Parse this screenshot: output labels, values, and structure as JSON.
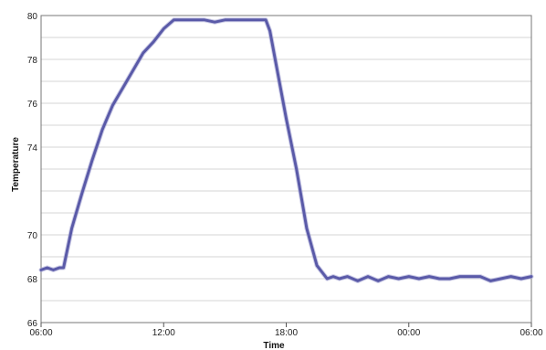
{
  "chart_data": {
    "type": "line",
    "title": "",
    "xlabel": "Time",
    "ylabel": "Temperature",
    "ylim": [
      66,
      80
    ],
    "y_ticks": [
      66,
      68,
      70,
      74,
      76,
      78,
      80
    ],
    "y_gridlines": [
      66,
      67,
      68,
      69,
      70,
      71,
      72,
      73,
      74,
      75,
      76,
      77,
      78,
      79,
      80
    ],
    "x_ticks": [
      "06:00",
      "12:00",
      "18:00",
      "00:00",
      "06:00"
    ],
    "x_unit": "hours since first 06:00 tick",
    "xlim": [
      0,
      24
    ],
    "grid": true,
    "line_color": "#5a5aa8",
    "series": [
      {
        "x": [
          0,
          0.3,
          0.6,
          0.9,
          1.1,
          1.5,
          2.0,
          2.5,
          3.0,
          3.5,
          4.0,
          4.5,
          5.0,
          5.5,
          6.0,
          6.5,
          7.0,
          7.5,
          8.0,
          8.5,
          9.0,
          9.5,
          10.0,
          10.5,
          11.0,
          11.2,
          11.5,
          12.0,
          12.5,
          13.0,
          13.5,
          14.0,
          14.3,
          14.6,
          15.0,
          15.5,
          16.0,
          16.5,
          17.0,
          17.5,
          18.0,
          18.5,
          19.0,
          19.5,
          20.0,
          20.5,
          21.0,
          21.5,
          22.0,
          22.5,
          23.0,
          23.5,
          24.0
        ],
        "values": [
          68.4,
          68.5,
          68.4,
          68.5,
          68.5,
          70.3,
          71.9,
          73.4,
          74.8,
          75.9,
          76.7,
          77.5,
          78.3,
          78.8,
          79.4,
          79.8,
          79.8,
          79.8,
          79.8,
          79.7,
          79.8,
          79.8,
          79.8,
          79.8,
          79.8,
          79.3,
          77.8,
          75.3,
          73.0,
          70.3,
          68.6,
          68.0,
          68.1,
          68.0,
          68.1,
          67.9,
          68.1,
          67.9,
          68.1,
          68.0,
          68.1,
          68.0,
          68.1,
          68.0,
          68.0,
          68.1,
          68.1,
          68.1,
          67.9,
          68.0,
          68.1,
          68.0,
          68.1
        ]
      }
    ]
  }
}
